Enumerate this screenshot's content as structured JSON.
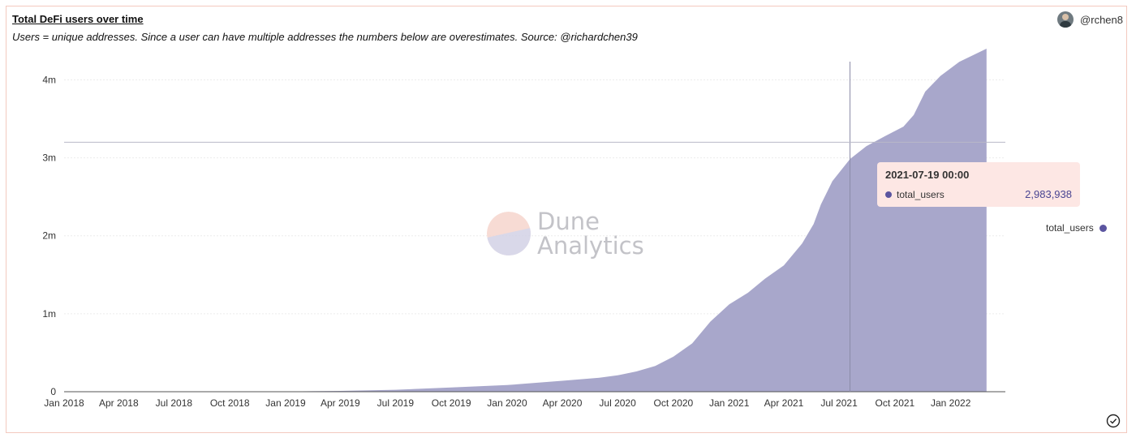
{
  "header": {
    "title": "Total DeFi users over time",
    "subtitle": "Users = unique addresses. Since a user can have multiple addresses the numbers below are overestimates. Source: @richardchen39",
    "username": "@rchen8"
  },
  "watermark": {
    "line1": "Dune",
    "line2": "Analytics"
  },
  "tooltip": {
    "date": "2021-07-19 00:00",
    "series": "total_users",
    "value": "2,983,938"
  },
  "colors": {
    "series": "#a8a7cb",
    "accent": "#5b55a0",
    "tooltip_bg": "#fde7e4",
    "border": "#f3c9bf"
  },
  "icons": {
    "status": "check-circle-icon",
    "avatar": "user-avatar"
  },
  "chart_data": {
    "type": "area",
    "title": "Total DeFi users over time",
    "xlabel": "",
    "ylabel": "",
    "ylim": [
      0,
      4400000
    ],
    "yticks": [
      {
        "value": 0,
        "label": "0"
      },
      {
        "value": 1000000,
        "label": "1m"
      },
      {
        "value": 2000000,
        "label": "2m"
      },
      {
        "value": 3000000,
        "label": "3m"
      },
      {
        "value": 4000000,
        "label": "4m"
      }
    ],
    "xlim": [
      "2018-01-01",
      "2022-04-01"
    ],
    "xticks": [
      {
        "date": "2018-01-01",
        "label": "Jan 2018"
      },
      {
        "date": "2018-04-01",
        "label": "Apr 2018"
      },
      {
        "date": "2018-07-01",
        "label": "Jul 2018"
      },
      {
        "date": "2018-10-01",
        "label": "Oct 2018"
      },
      {
        "date": "2019-01-01",
        "label": "Jan 2019"
      },
      {
        "date": "2019-04-01",
        "label": "Apr 2019"
      },
      {
        "date": "2019-07-01",
        "label": "Jul 2019"
      },
      {
        "date": "2019-10-01",
        "label": "Oct 2019"
      },
      {
        "date": "2020-01-01",
        "label": "Jan 2020"
      },
      {
        "date": "2020-04-01",
        "label": "Apr 2020"
      },
      {
        "date": "2020-07-01",
        "label": "Jul 2020"
      },
      {
        "date": "2020-10-01",
        "label": "Oct 2020"
      },
      {
        "date": "2021-01-01",
        "label": "Jan 2021"
      },
      {
        "date": "2021-04-01",
        "label": "Apr 2021"
      },
      {
        "date": "2021-07-01",
        "label": "Jul 2021"
      },
      {
        "date": "2021-10-01",
        "label": "Oct 2021"
      },
      {
        "date": "2022-01-01",
        "label": "Jan 2022"
      }
    ],
    "series": [
      {
        "name": "total_users",
        "points": [
          [
            "2018-01-01",
            0
          ],
          [
            "2018-07-01",
            1000
          ],
          [
            "2019-01-01",
            3000
          ],
          [
            "2019-04-01",
            10000
          ],
          [
            "2019-07-01",
            25000
          ],
          [
            "2019-10-01",
            55000
          ],
          [
            "2020-01-01",
            85000
          ],
          [
            "2020-04-01",
            140000
          ],
          [
            "2020-06-01",
            180000
          ],
          [
            "2020-07-01",
            210000
          ],
          [
            "2020-08-01",
            260000
          ],
          [
            "2020-09-01",
            330000
          ],
          [
            "2020-10-01",
            450000
          ],
          [
            "2020-11-01",
            620000
          ],
          [
            "2020-12-01",
            900000
          ],
          [
            "2021-01-01",
            1120000
          ],
          [
            "2021-02-01",
            1270000
          ],
          [
            "2021-03-01",
            1450000
          ],
          [
            "2021-04-01",
            1620000
          ],
          [
            "2021-05-01",
            1900000
          ],
          [
            "2021-05-20",
            2150000
          ],
          [
            "2021-06-01",
            2400000
          ],
          [
            "2021-06-20",
            2700000
          ],
          [
            "2021-07-19",
            2983938
          ],
          [
            "2021-08-15",
            3150000
          ],
          [
            "2021-09-15",
            3280000
          ],
          [
            "2021-10-15",
            3400000
          ],
          [
            "2021-11-01",
            3550000
          ],
          [
            "2021-11-20",
            3850000
          ],
          [
            "2021-12-15",
            4050000
          ],
          [
            "2022-01-15",
            4230000
          ],
          [
            "2022-03-01",
            4400000
          ]
        ]
      }
    ],
    "crosshair": {
      "x": "2021-07-19",
      "y": 3200000
    },
    "grid": true,
    "legend": "right"
  }
}
